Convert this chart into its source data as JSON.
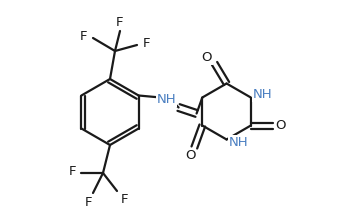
{
  "bg_color": "#ffffff",
  "line_color": "#1a1a1a",
  "nh_color": "#4a7fc1",
  "line_width": 1.6,
  "font_size": 9.5,
  "fig_width": 3.5,
  "fig_height": 2.24,
  "dpi": 100,
  "xlim": [
    0,
    3.5
  ],
  "ylim": [
    0,
    2.24
  ]
}
